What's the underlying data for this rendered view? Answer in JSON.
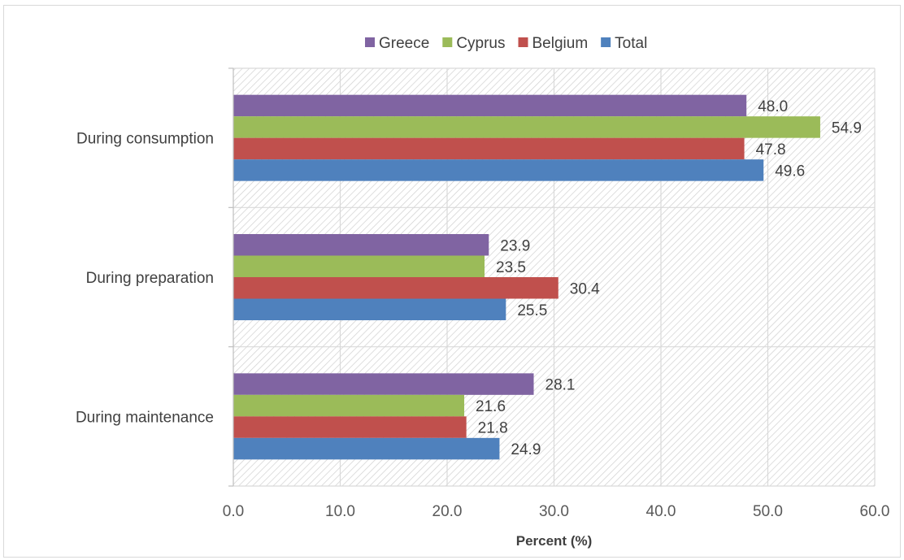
{
  "chart_data": {
    "type": "bar",
    "orientation": "horizontal",
    "title": "",
    "xlabel": "Percent (%)",
    "ylabel": "",
    "xlim": [
      0,
      60
    ],
    "x_ticks": [
      "0.0",
      "10.0",
      "20.0",
      "30.0",
      "40.0",
      "50.0",
      "60.0"
    ],
    "x_tick_values": [
      0,
      10,
      20,
      30,
      40,
      50,
      60
    ],
    "categories": [
      "During consumption",
      "During preparation",
      "During maintenance"
    ],
    "series": [
      {
        "name": "Greece",
        "color": "#8064A2",
        "values": [
          48.0,
          23.9,
          28.1
        ],
        "labels": [
          "48.0",
          "23.9",
          "28.1"
        ]
      },
      {
        "name": "Cyprus",
        "color": "#9BBB59",
        "values": [
          54.9,
          23.5,
          21.6
        ],
        "labels": [
          "54.9",
          "23.5",
          "21.6"
        ]
      },
      {
        "name": "Belgium",
        "color": "#C0504D",
        "values": [
          47.8,
          30.4,
          21.8
        ],
        "labels": [
          "47.8",
          "30.4",
          "21.8"
        ]
      },
      {
        "name": "Total",
        "color": "#4F81BD",
        "values": [
          49.6,
          25.5,
          24.9
        ],
        "labels": [
          "49.6",
          "25.5",
          "24.9"
        ]
      }
    ],
    "legend_position": "top",
    "grid": true
  }
}
